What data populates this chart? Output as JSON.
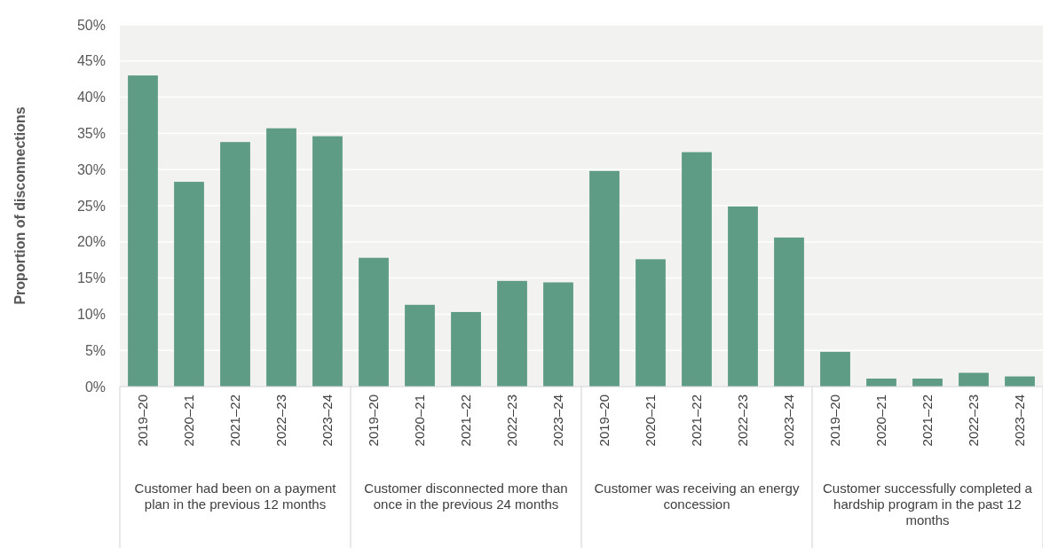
{
  "chart_data": {
    "type": "bar",
    "ylabel": "Proportion of disconnections",
    "categories": [
      "2019–20",
      "2020–21",
      "2021–22",
      "2022–23",
      "2023–24",
      "2019–20",
      "2020–21",
      "2021–22",
      "2022–23",
      "2023–24",
      "2019–20",
      "2020–21",
      "2021–22",
      "2022–23",
      "2023–24",
      "2019–20",
      "2020–21",
      "2021–22",
      "2022–23",
      "2023–24"
    ],
    "values": [
      43,
      28.3,
      33.8,
      35.7,
      34.6,
      17.8,
      11.3,
      10.3,
      14.6,
      14.4,
      29.8,
      17.6,
      32.4,
      24.9,
      20.6,
      4.8,
      1.1,
      1.1,
      1.9,
      1.4
    ],
    "color": "#5e9c86",
    "ylim": [
      0,
      50
    ],
    "yticks": [
      {
        "value": 0,
        "label": "0%"
      },
      {
        "value": 5,
        "label": "5%"
      },
      {
        "value": 10,
        "label": "10%"
      },
      {
        "value": 15,
        "label": "15%"
      },
      {
        "value": 20,
        "label": "20%"
      },
      {
        "value": 25,
        "label": "25%"
      },
      {
        "value": 30,
        "label": "30%"
      },
      {
        "value": 35,
        "label": "35%"
      },
      {
        "value": 40,
        "label": "40%"
      },
      {
        "value": 45,
        "label": "45%"
      },
      {
        "value": 50,
        "label": "50%"
      }
    ],
    "grid": "y",
    "annotations": [
      "Customer had been on a payment plan in the previous 12 months",
      "Customer disconnected more than once in the previous 24 months",
      "Customer was receiving an energy concession",
      "Customer successfully completed a hardship program in the past 12 months"
    ]
  }
}
